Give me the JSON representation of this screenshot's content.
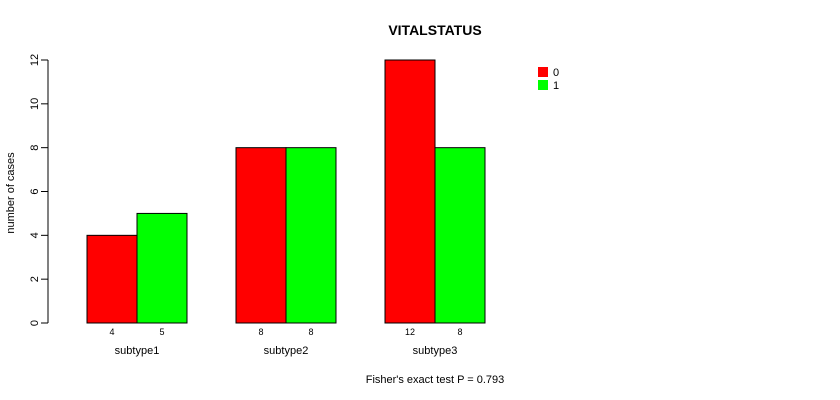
{
  "chart_data": {
    "type": "bar",
    "title": "VITALSTATUS",
    "xlabel": "",
    "ylabel": "number of cases",
    "categories": [
      "subtype1",
      "subtype2",
      "subtype3"
    ],
    "series": [
      {
        "name": "0",
        "color": "#ff0000",
        "values": [
          4,
          8,
          12
        ]
      },
      {
        "name": "1",
        "color": "#00ff00",
        "values": [
          5,
          8,
          8
        ]
      }
    ],
    "ylim": [
      0,
      12
    ],
    "yticks": [
      0,
      2,
      4,
      6,
      8,
      10,
      12
    ],
    "grid": false,
    "legend_position": "top-right",
    "footnote": "Fisher's exact test P = 0.793"
  }
}
